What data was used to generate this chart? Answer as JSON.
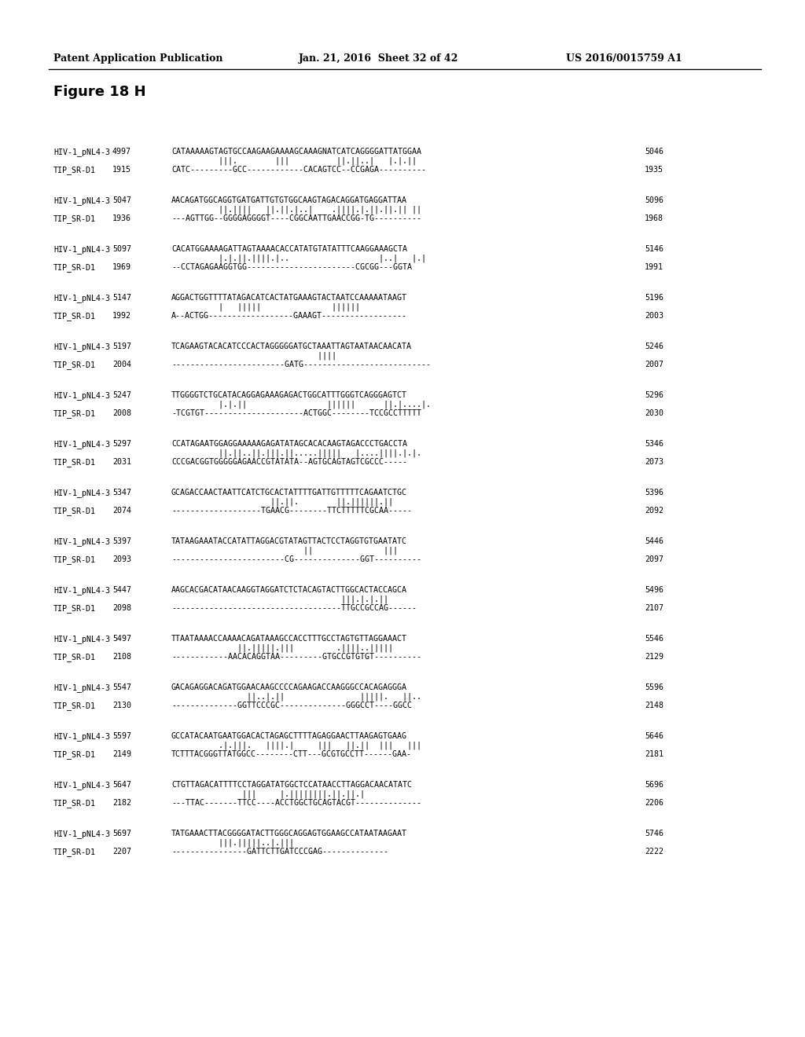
{
  "header_left": "Patent Application Publication",
  "header_mid": "Jan. 21, 2016  Sheet 32 of 42",
  "header_right": "US 2016/0015759 A1",
  "figure_title": "Figure 18 H",
  "background_color": "#ffffff",
  "text_color": "#000000",
  "blocks": [
    {
      "hiv_label": "HIV-1_pNL4-3",
      "hiv_start": "4997",
      "hiv_seq": "CATAAAAAGTAGTGCCAAGAAGAAAAGCAAAGNATCATCAGGGGATTATGGAA",
      "match": "          |||.        |||          ||.||..|   |.|.||",
      "tip_seq": "CATC---------GCC------------CACAGTCC--CCGAGA----------",
      "tip_label": "TIP_SR-D1",
      "tip_start": "1915",
      "hiv_end": "5046",
      "tip_end": "1935"
    },
    {
      "hiv_label": "HIV-1_pNL4-3",
      "hiv_start": "5047",
      "hiv_seq": "AACAGATGGCAGGTGATGATTGTGTGGCAAGTAGACAGGATGAGGATTAA",
      "match": "          ||.||||   ||.||.|..|    .||||.|.||.||.|| ||",
      "tip_seq": "---AGTTGG--GGGGAGGGGT----CGGCAATTGAACCGG-TG----------",
      "tip_label": "TIP_SR-D1",
      "tip_start": "1936",
      "hiv_end": "5096",
      "tip_end": "1968"
    },
    {
      "hiv_label": "HIV-1_pNL4-3",
      "hiv_start": "5097",
      "hiv_seq": "CACATGGAAAAGATTAGTAAAACACCATATGTATATTTCAAGGAAAGCTA",
      "match": "          |.|.||.||||.|..                   |..|   |.|",
      "tip_seq": "--CCTAGAGAAGGTGG-----------------------CGCGG---GGTA",
      "tip_label": "TIP_SR-D1",
      "tip_start": "1969",
      "hiv_end": "5146",
      "tip_end": "1991"
    },
    {
      "hiv_label": "HIV-1_pNL4-3",
      "hiv_start": "5147",
      "hiv_seq": "AGGACTGGTTTTATAGACATCACTATGAAAGTACTAATCCAAAAATAAGT",
      "match": "          |   |||||               ||||||",
      "tip_seq": "A--ACTGG------------------GAAAGT------------------",
      "tip_label": "TIP_SR-D1",
      "tip_start": "1992",
      "hiv_end": "5196",
      "tip_end": "2003"
    },
    {
      "hiv_label": "HIV-1_pNL4-3",
      "hiv_start": "5197",
      "hiv_seq": "TCAGAAGTACACATCCCACTAGGGGGATGCTAAATTAGTAATAACAACATA",
      "match": "                               ||||",
      "tip_seq": "------------------------GATG---------------------------",
      "tip_label": "TIP_SR-D1",
      "tip_start": "2004",
      "hiv_end": "5246",
      "tip_end": "2007"
    },
    {
      "hiv_label": "HIV-1_pNL4-3",
      "hiv_start": "5247",
      "hiv_seq": "TTGGGGTCTGCATACAGGAGAAAGAGACTGGCATTTGGGTCAGGGAGTCT",
      "match": "          |.|.||                 ||||||      ||.|....|.",
      "tip_seq": "-TCGTGT---------------------ACTGGC--------TCCGCCTTTTT",
      "tip_label": "TIP_SR-D1",
      "tip_start": "2008",
      "hiv_end": "5296",
      "tip_end": "2030"
    },
    {
      "hiv_label": "HIV-1_pNL4-3",
      "hiv_start": "5297",
      "hiv_seq": "CCATAGAATGGAGGAAAAAGAGATATAGCACACAAGTAGACCCTGACCTA",
      "match": "          ||.||..||.|||.||.....|||||   |....||||.|.|.",
      "tip_seq": "CCCGACGGTGGGGGAGAACCGTATATA--AGTGCAGTAGTCGCCC-----",
      "tip_label": "TIP_SR-D1",
      "tip_start": "2031",
      "hiv_end": "5346",
      "tip_end": "2073"
    },
    {
      "hiv_label": "HIV-1_pNL4-3",
      "hiv_start": "5347",
      "hiv_seq": "GCAGACCAACTAATTCATCTGCACTATTTTGATTGTTTTTCAGAATCTGC",
      "match": "                     ||.||.        ||.||||||.||",
      "tip_seq": "-------------------TGAACG--------TTCTTTTTCGCAA-----",
      "tip_label": "TIP_SR-D1",
      "tip_start": "2074",
      "hiv_end": "5396",
      "tip_end": "2092"
    },
    {
      "hiv_label": "HIV-1_pNL4-3",
      "hiv_start": "5397",
      "hiv_seq": "TATAAGAAATACCATATTAGGACGTATAGTTACTCCTAGGTGTGAATATC",
      "match": "                            ||               |||",
      "tip_seq": "------------------------CG--------------GGT----------",
      "tip_label": "TIP_SR-D1",
      "tip_start": "2093",
      "hiv_end": "5446",
      "tip_end": "2097"
    },
    {
      "hiv_label": "HIV-1_pNL4-3",
      "hiv_start": "5447",
      "hiv_seq": "AAGCACGACATAACAAGGTAGGATCTCTACAGTACTTGGCACTACCAGCA",
      "match": "                                    |||.|.|.||",
      "tip_seq": "------------------------------------TTGCCGCCAG------",
      "tip_label": "TIP_SR-D1",
      "tip_start": "2098",
      "hiv_end": "5496",
      "tip_end": "2107"
    },
    {
      "hiv_label": "HIV-1_pNL4-3",
      "hiv_start": "5497",
      "hiv_seq": "TTAATAAAACCAAAACAGATAAAGCCACCTTTGCCTAGTGTTAGGAAACT",
      "match": "              ||.|||||.|||         .||||..|||||",
      "tip_seq": "------------AACACAGGTAA---------GTGCCGTGTGT----------",
      "tip_label": "TIP_SR-D1",
      "tip_start": "2108",
      "hiv_end": "5546",
      "tip_end": "2129"
    },
    {
      "hiv_label": "HIV-1_pNL4-3",
      "hiv_start": "5547",
      "hiv_seq": "GACAGAGGACAGATGGAACAAGCCCCAGAAGACCAAGGGCCACAGAGGGA",
      "match": "                ||..|.||                |||||.   ||..",
      "tip_seq": "--------------GGTTCCCGC--------------GGGCCT----GGCC",
      "tip_label": "TIP_SR-D1",
      "tip_start": "2130",
      "hiv_end": "5596",
      "tip_end": "2148"
    },
    {
      "hiv_label": "HIV-1_pNL4-3",
      "hiv_start": "5597",
      "hiv_seq": "GCCATACAATGAATGGACACTAGAGCTTTTAGAGGAACTTAAGAGTGAAG",
      "match": "          .|.|||.   ||||.|     |||   ||.||  |||   |||",
      "tip_seq": "TCTTTACGGGTTATGGCC--------CTT---GCGTGCCTT------GAA-",
      "tip_label": "TIP_SR-D1",
      "tip_start": "2149",
      "hiv_end": "5646",
      "tip_end": "2181"
    },
    {
      "hiv_label": "HIV-1_pNL4-3",
      "hiv_start": "5647",
      "hiv_seq": "CTGTTAGACATTTTCCTAGGATATGGCTCCATAACCTTAGGACAACATATC",
      "match": "               |||     |.||||||||.||.||.|",
      "tip_seq": "---TTAC-------TTCC----ACCTGGCTGCAGTACGT--------------",
      "tip_label": "TIP_SR-D1",
      "tip_start": "2182",
      "hiv_end": "5696",
      "tip_end": "2206"
    },
    {
      "hiv_label": "HIV-1_pNL4-3",
      "hiv_start": "5697",
      "hiv_seq": "TATGAAACTTACGGGGATACTTGGGCAGGAGTGGAAGCCATAATAAGAAT",
      "match": "          |||.|||||..|.|||",
      "tip_seq": "----------------GATTCTTGATCCCGAG--------------",
      "tip_label": "TIP_SR-D1",
      "tip_start": "2207",
      "hiv_end": "5746",
      "tip_end": "2222"
    }
  ]
}
